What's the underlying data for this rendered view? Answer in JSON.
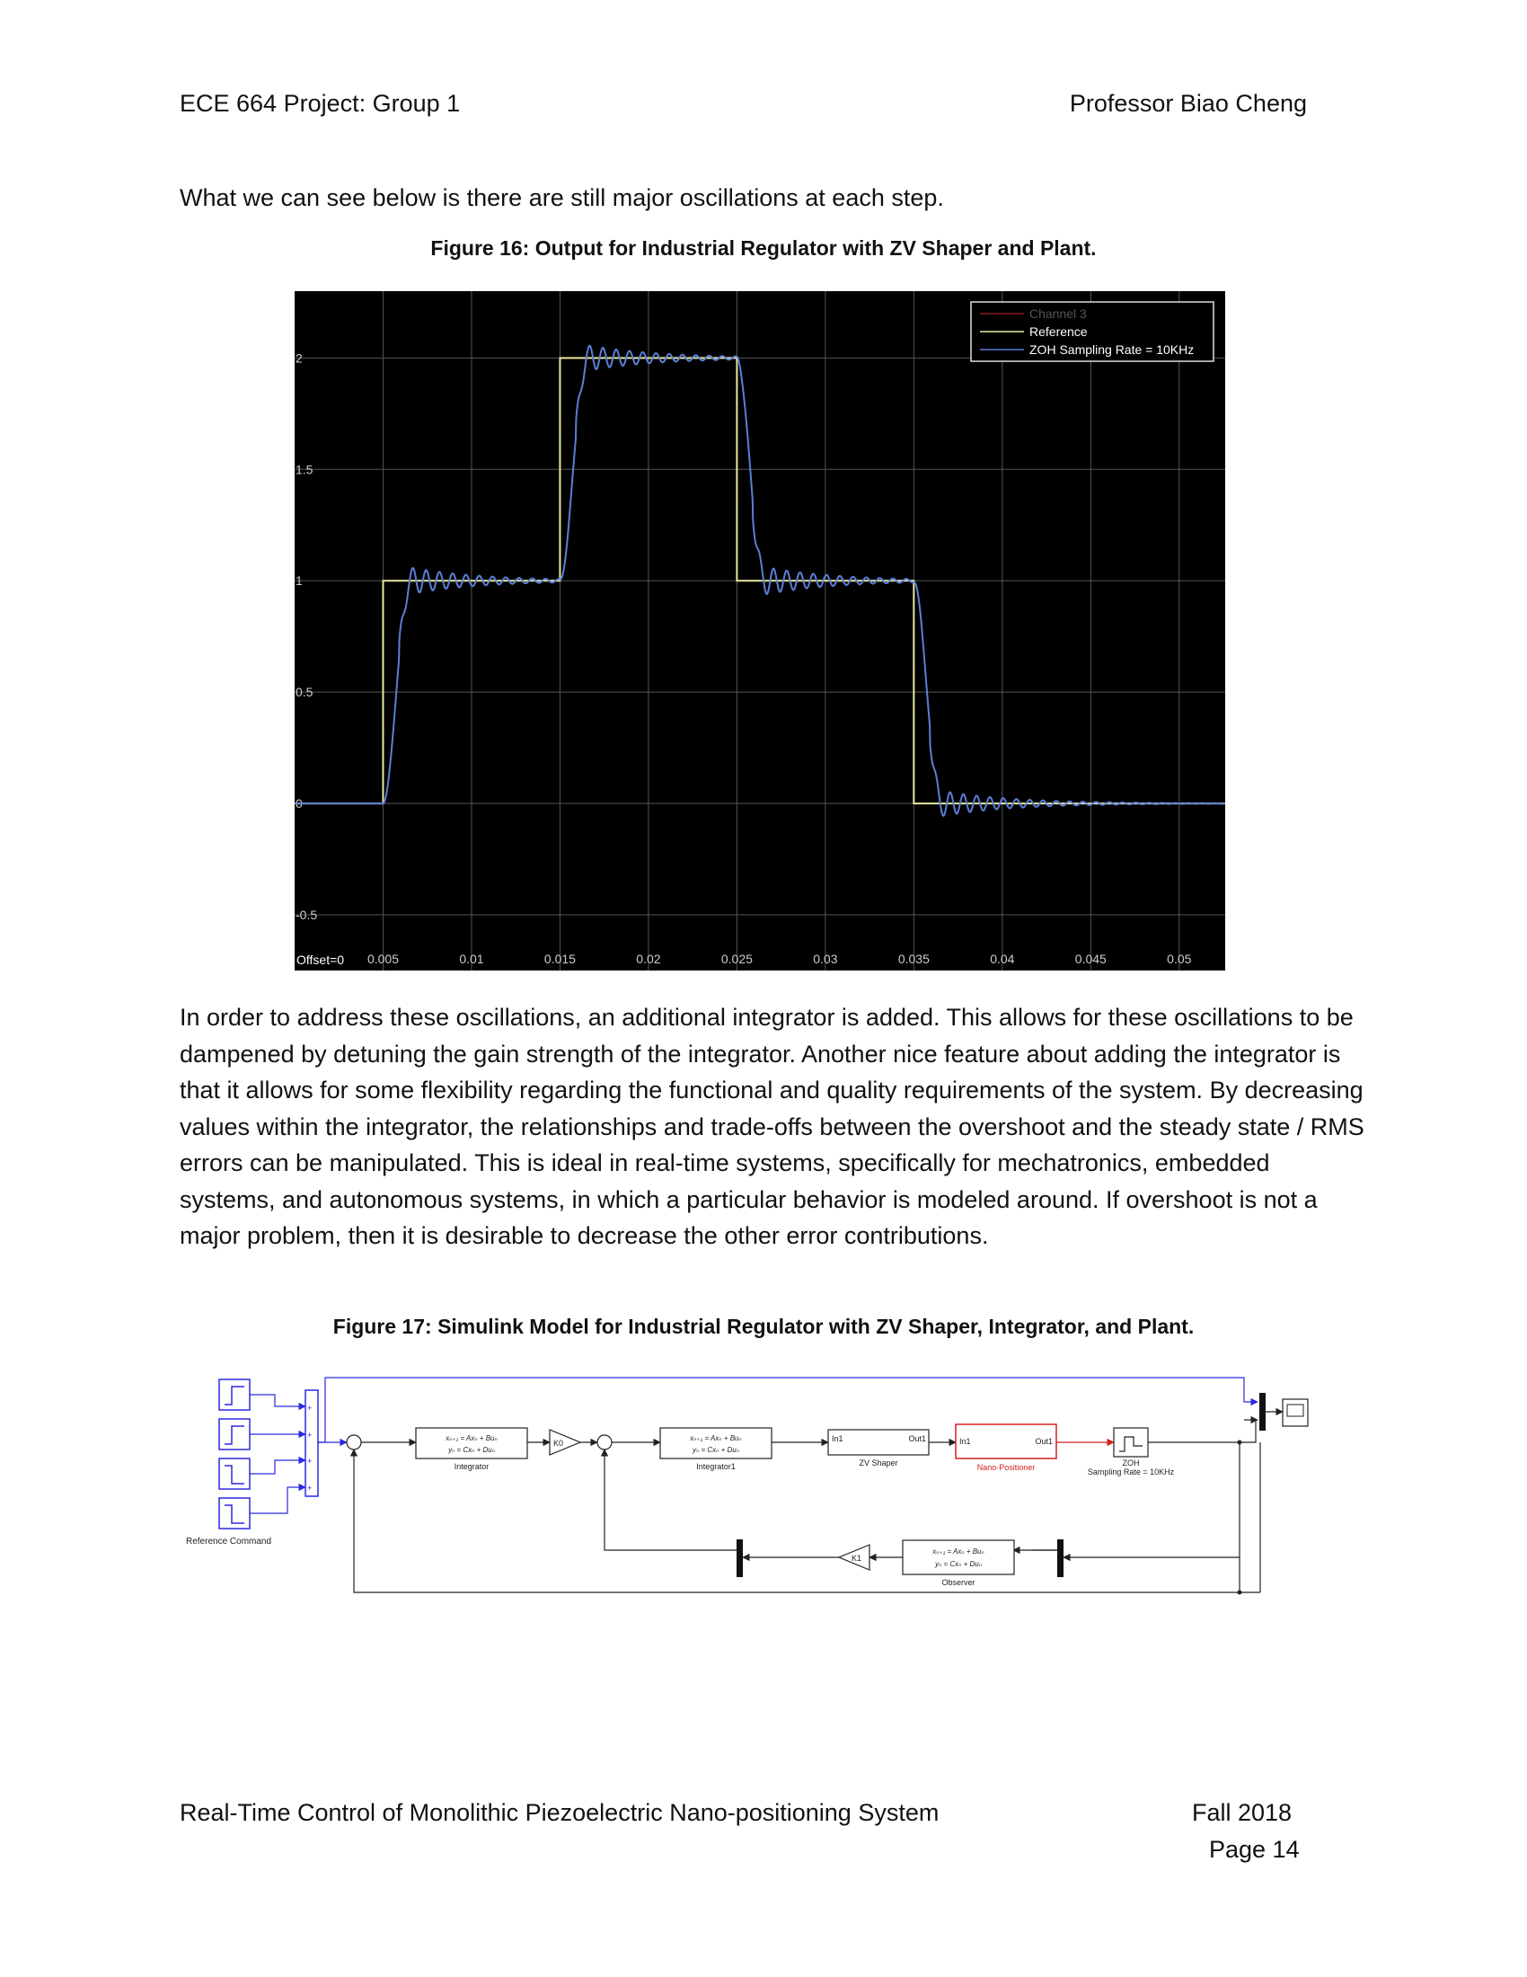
{
  "header": {
    "left": "ECE 664 Project: Group 1",
    "right": "Professor Biao Cheng"
  },
  "intro_text": "What we can see below is there are still major oscillations at each step.",
  "figure16": {
    "caption": "Figure 16: Output for Industrial Regulator with ZV Shaper and Plant.",
    "chart_data": {
      "type": "line",
      "title": "",
      "xlabel": "",
      "ylabel": "",
      "xlim": [
        0,
        0.0526
      ],
      "ylim": [
        -0.75,
        2.3
      ],
      "x_ticks": [
        "0.005",
        "0.01",
        "0.015",
        "0.02",
        "0.025",
        "0.03",
        "0.035",
        "0.04",
        "0.045",
        "0.05"
      ],
      "y_ticks": [
        "2",
        "1.5",
        "1",
        "0.5",
        "0",
        "-0.5"
      ],
      "offset_label": "Offset=0",
      "grid": true,
      "legend_position": "top-right",
      "background": "#000000",
      "series": [
        {
          "name": "Channel 3",
          "color": "#8a1a1a",
          "x": [],
          "y": []
        },
        {
          "name": "Reference",
          "color": "#e8e8a0",
          "x": [
            0,
            0.005,
            0.005,
            0.015,
            0.015,
            0.025,
            0.025,
            0.035,
            0.035,
            0.0526
          ],
          "y": [
            0,
            0,
            1,
            1,
            2,
            2,
            1,
            1,
            0,
            0
          ]
        },
        {
          "name": "ZOH Sampling Rate = 10KHz",
          "color": "#5b7fd6",
          "steps": [
            {
              "t": 0.005,
              "from": 0,
              "to": 1
            },
            {
              "t": 0.015,
              "from": 1,
              "to": 2
            },
            {
              "t": 0.025,
              "from": 2,
              "to": 1
            },
            {
              "t": 0.035,
              "from": 1,
              "to": 0
            }
          ],
          "initial": 0,
          "rise_time": 0.0015,
          "oscillation_amplitude": 0.07,
          "oscillation_period": 0.00075,
          "oscillation_decay": 0.004
        }
      ]
    }
  },
  "body_paragraph": "In order to address these oscillations, an additional integrator is added. This allows for these oscillations to be dampened by detuning the gain strength of the integrator. Another nice feature about adding the integrator is that it allows for some flexibility regarding the functional and quality requirements of the system. By decreasing values within the integrator, the relationships and trade-offs between the overshoot and the steady state / RMS errors can be manipulated. This is ideal in real-time systems, specifically for mechatronics, embedded systems, and autonomous systems, in which a particular behavior is modeled around. If overshoot is not a major problem, then it is desirable to decrease the other error contributions.",
  "figure17": {
    "caption": "Figure 17: Simulink Model for Industrial Regulator with ZV Shaper, Integrator, and Plant.",
    "blocks": {
      "reference_command": "Reference Command",
      "integrator": "Integrator",
      "integrator1": "Integrator1",
      "gain_k0": "K0",
      "gain_k1": "K1",
      "zv_shaper": "ZV Shaper",
      "zv_in": "In1",
      "zv_out": "Out1",
      "nano_positioner": "Nano-Positioner",
      "np_in": "In1",
      "np_out": "Out1",
      "zoh": "ZOH",
      "zoh_rate": "Sampling Rate = 10KHz",
      "observer": "Observer",
      "state_eq": "xₙ₊₁ = Axₙ + Buₙ",
      "output_eq": "yₙ = Cxₙ + Duₙ"
    },
    "colors": {
      "signal": "#222222",
      "reference_wire": "#2a2ae0",
      "nano_block": "#d32020"
    }
  },
  "footer": {
    "title": "Real-Time Control of Monolithic Piezoelectric Nano-positioning System",
    "term": "Fall 2018",
    "page": "Page 14"
  }
}
